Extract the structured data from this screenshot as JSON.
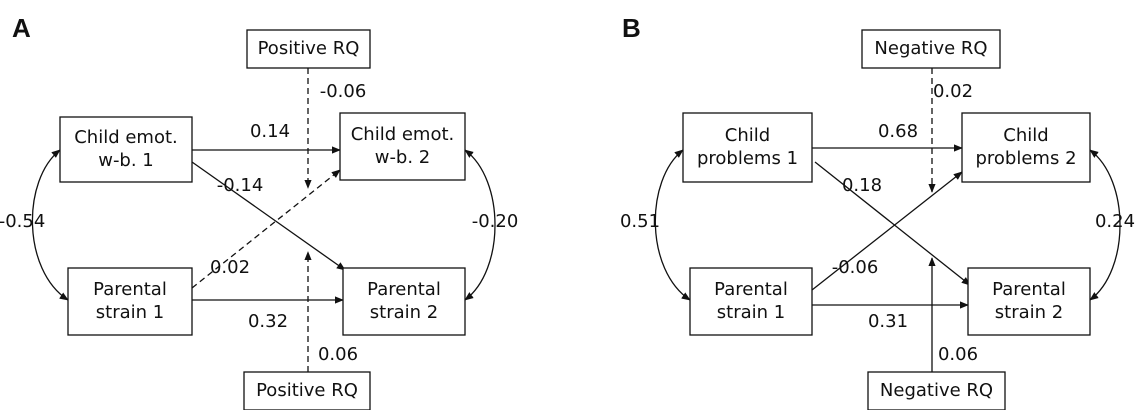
{
  "panels": [
    {
      "label": "A",
      "nodes": [
        {
          "lines": [
            "Positive RQ"
          ]
        },
        {
          "lines": [
            "Child emot.",
            "w-b. 1"
          ]
        },
        {
          "lines": [
            "Child emot.",
            "w-b. 2"
          ]
        },
        {
          "lines": [
            "Parental",
            "strain 1"
          ]
        },
        {
          "lines": [
            "Parental",
            "strain 2"
          ]
        },
        {
          "lines": [
            "Positive RQ"
          ]
        }
      ],
      "edges": [
        {
          "label": "-0.06"
        },
        {
          "label": "0.14"
        },
        {
          "label": "-0.14"
        },
        {
          "label": "-0.54"
        },
        {
          "label": "-0.20"
        },
        {
          "label": "0.02"
        },
        {
          "label": "0.32"
        },
        {
          "label": "0.06"
        }
      ]
    },
    {
      "label": "B",
      "nodes": [
        {
          "lines": [
            "Negative RQ"
          ]
        },
        {
          "lines": [
            "Child",
            "problems 1"
          ]
        },
        {
          "lines": [
            "Child",
            "problems 2"
          ]
        },
        {
          "lines": [
            "Parental",
            "strain 1"
          ]
        },
        {
          "lines": [
            "Parental",
            "strain 2"
          ]
        },
        {
          "lines": [
            "Negative RQ"
          ]
        }
      ],
      "edges": [
        {
          "label": "0.02"
        },
        {
          "label": "0.68"
        },
        {
          "label": "0.18"
        },
        {
          "label": "0.51"
        },
        {
          "label": "0.24"
        },
        {
          "label": "-0.06"
        },
        {
          "label": "0.31"
        },
        {
          "label": "0.06"
        }
      ]
    }
  ]
}
